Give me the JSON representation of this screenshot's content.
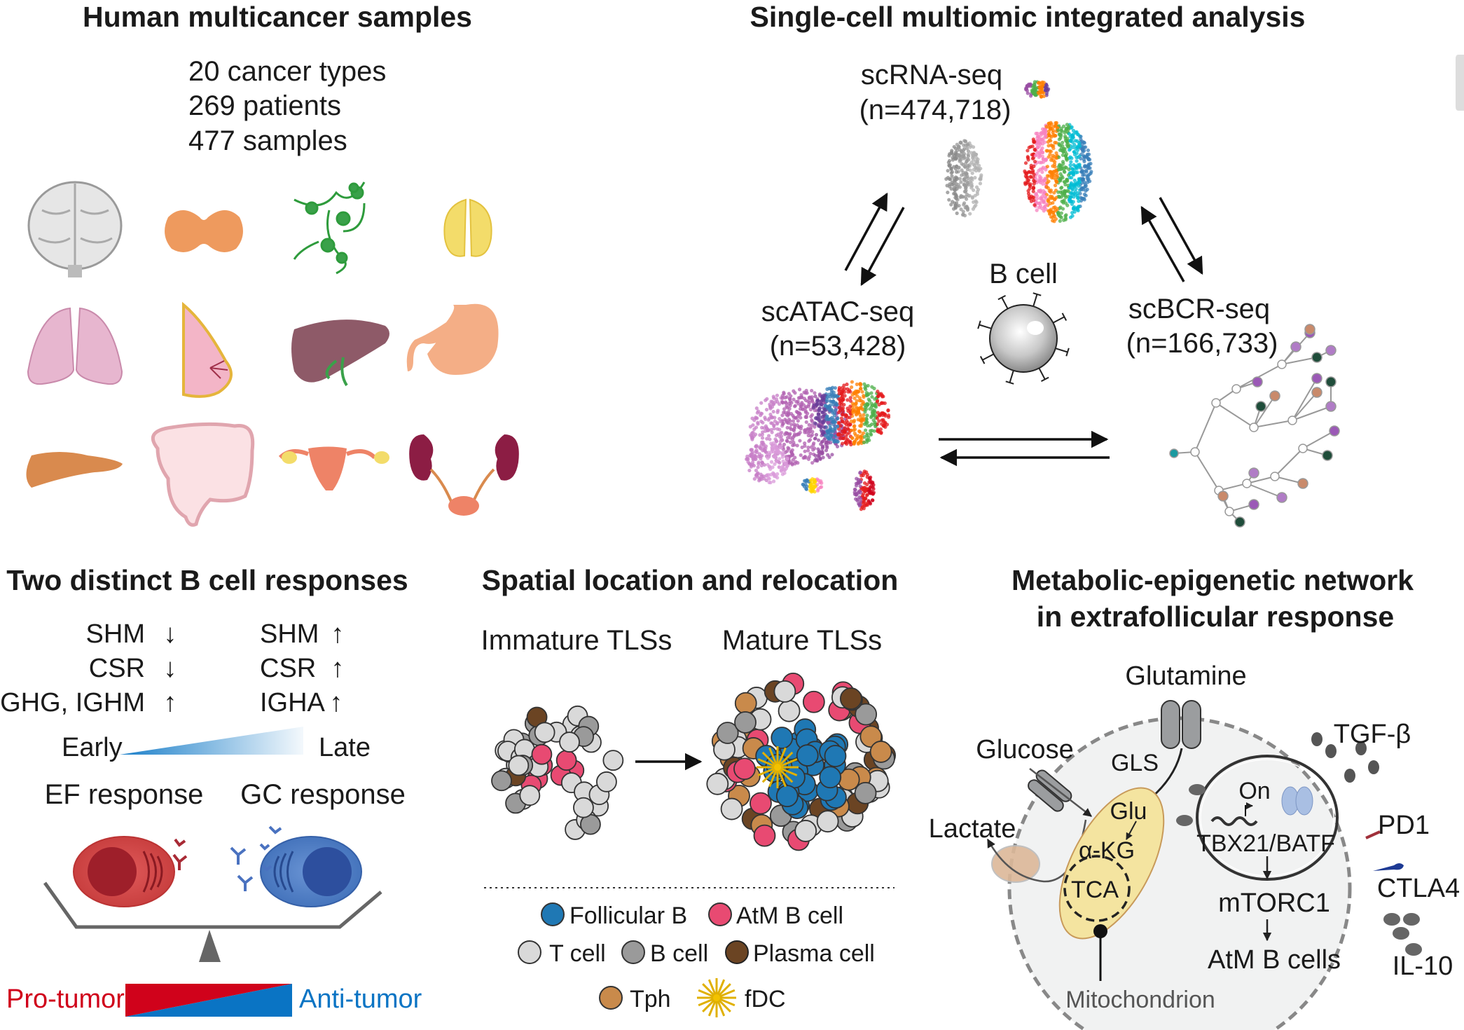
{
  "panels": {
    "samples": {
      "title": "Human multicancer samples",
      "stats": [
        "20 cancer types",
        "269 patients",
        "477 samples"
      ],
      "organ_icons": [
        "brain-icon",
        "thyroid-icon",
        "lymph-node-icon",
        "thymus-icon",
        "lung-icon",
        "breast-icon",
        "liver-icon",
        "stomach-icon",
        "pancreas-icon",
        "colon-icon",
        "uterus-icon",
        "kidney-icon"
      ]
    },
    "multiomic": {
      "title": "Single-cell multiomic integrated analysis",
      "scrna": {
        "label": "scRNA-seq",
        "n": "(n=474,718)"
      },
      "scatac": {
        "label": "scATAC-seq",
        "n": "(n=53,428)"
      },
      "scbcr": {
        "label": "scBCR-seq",
        "n": "(n=166,733)"
      },
      "center": "B cell"
    },
    "responses": {
      "title": "Two distinct B cell responses",
      "left": [
        {
          "label": "SHM",
          "arrow": "↓"
        },
        {
          "label": "CSR",
          "arrow": "↓"
        },
        {
          "label": "IGHG, IGHM",
          "arrow": "↑"
        }
      ],
      "right": [
        {
          "label": "SHM",
          "arrow": "↑"
        },
        {
          "label": "CSR",
          "arrow": "↑"
        },
        {
          "label": "IGHA",
          "arrow": "↑"
        }
      ],
      "early": "Early",
      "late": "Late",
      "ef": "EF response",
      "gc": "GC response",
      "pro": "Pro-tumor",
      "anti": "Anti-tumor",
      "colors": {
        "pro": "#d0021b",
        "anti": "#0a74c4"
      }
    },
    "spatial": {
      "title": "Spatial location and relocation",
      "immature": "Immature TLSs",
      "mature": "Mature TLSs",
      "legend": [
        {
          "label": "Follicular B",
          "color": "#1f78b4"
        },
        {
          "label": "AtM B cell",
          "color": "#e84a72"
        },
        {
          "label": "T cell",
          "color": "#d9d9d9"
        },
        {
          "label": "B cell",
          "color": "#9a9a9a"
        },
        {
          "label": "Plasma cell",
          "color": "#6b4423"
        },
        {
          "label": "Tph",
          "color": "#c98a4b"
        },
        {
          "label": "fDC",
          "color": "#f2c200"
        }
      ]
    },
    "metabolic": {
      "title1": "Metabolic-epigenetic network",
      "title2": "in extrafollicular response",
      "glutamine": "Glutamine",
      "glucose": "Glucose",
      "lactate": "Lactate",
      "gls": "GLS",
      "glu": "Glu",
      "akg": "α-KG",
      "tca": "TCA",
      "mito": "Mitochondrion",
      "on": "On",
      "tf": "TBX21/BATF",
      "mtorc": "mTORC1",
      "atm": "AtM B cells",
      "tgf": "TGF-β",
      "pd1": "PD1",
      "ctla4": "CTLA4",
      "il10": "IL-10"
    }
  }
}
